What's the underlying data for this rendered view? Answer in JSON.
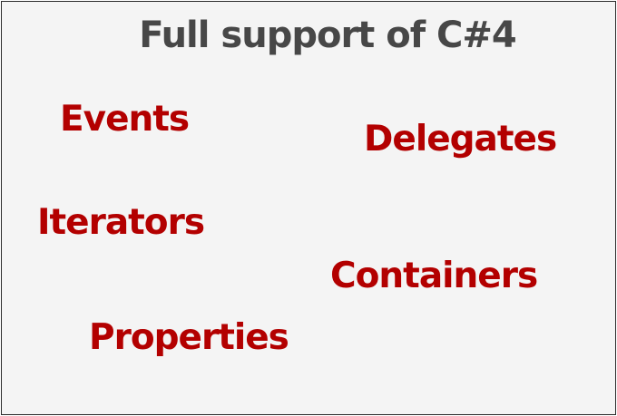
{
  "title": "Full support of C#4",
  "colors": {
    "title": "#474747",
    "feature": "#b30000",
    "background": "#f4f4f4",
    "border": "#2b2b2b"
  },
  "features": {
    "events": "Events",
    "delegates": "Delegates",
    "iterators": "Iterators",
    "containers": "Containers",
    "properties": "Properties"
  }
}
